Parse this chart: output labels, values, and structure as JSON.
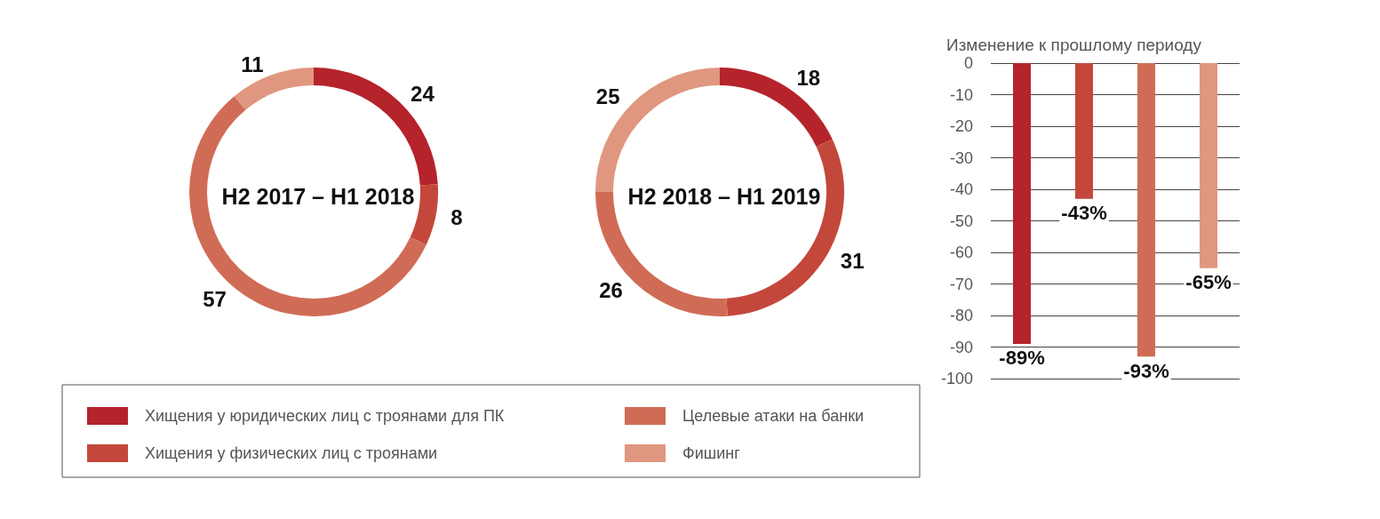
{
  "chart_data": [
    {
      "type": "donut",
      "categories": [
        "Хищения у юридических лиц с троянами для ПК",
        "Хищения у физических лиц с троянами",
        "Целевые атаки на банки",
        "Фишинг"
      ],
      "colors": [
        "#b5232b",
        "#c4473b",
        "#d06c56",
        "#e0977f"
      ],
      "data_labels": true,
      "legend": "bottom",
      "series": [
        {
          "name": "H2 2017 – H1 2018",
          "values": [
            24,
            8,
            57,
            11
          ]
        },
        {
          "name": "H2 2018 – H1 2019",
          "values": [
            18,
            31,
            26,
            25
          ]
        }
      ]
    },
    {
      "type": "bar",
      "title": "Изменение к прошлому периоду",
      "categories": [
        null,
        null,
        null,
        null
      ],
      "values": [
        -89,
        -43,
        -93,
        -65
      ],
      "colors": [
        "#b5232b",
        "#c4473b",
        "#d06c56",
        "#e0977f"
      ],
      "value_labels": [
        "-89%",
        "-43%",
        "-93%",
        "-65%"
      ],
      "ylim": [
        -100,
        0
      ],
      "yticks": [
        -100,
        -90,
        -80,
        -70,
        -60,
        -50,
        -40,
        -30,
        -20,
        -10,
        0
      ],
      "grid": "y"
    }
  ]
}
